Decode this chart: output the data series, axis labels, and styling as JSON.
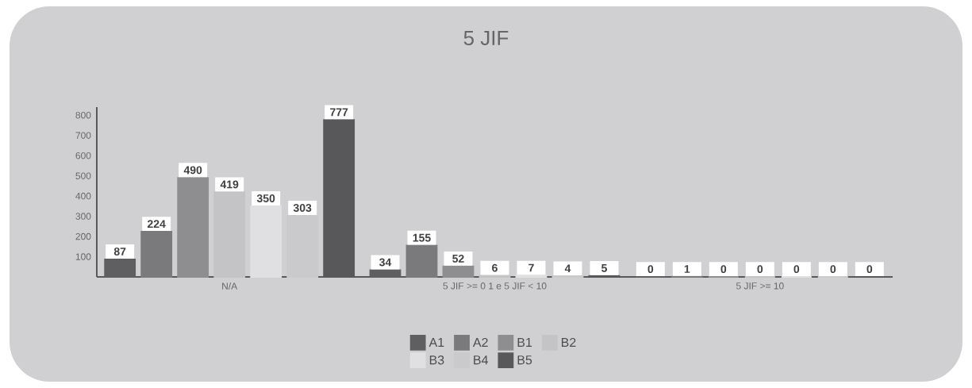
{
  "chart_data": {
    "type": "bar",
    "title": "5 JIF",
    "categories": [
      "N/A",
      "5 JIF >= 0 1 e 5 JIF < 10",
      "5 JIF >= 10"
    ],
    "series": [
      {
        "name": "A1",
        "color": "#5f5f61",
        "values": [
          87,
          34,
          0
        ]
      },
      {
        "name": "A2",
        "color": "#7a7a7c",
        "values": [
          224,
          155,
          1
        ]
      },
      {
        "name": "B1",
        "color": "#8e8e90",
        "values": [
          490,
          52,
          0
        ]
      },
      {
        "name": "B2",
        "color": "#c4c4c6",
        "values": [
          419,
          6,
          0
        ]
      },
      {
        "name": "B3",
        "color": "#e0e0e2",
        "values": [
          350,
          7,
          0
        ]
      },
      {
        "name": "B4",
        "color": "#cacacc",
        "values": [
          303,
          4,
          0
        ]
      },
      {
        "name": "B5",
        "color": "#58585a",
        "values": [
          777,
          5,
          0
        ]
      }
    ],
    "ylim": [
      0,
      840
    ],
    "yticks": [
      100,
      200,
      300,
      400,
      500,
      600,
      700,
      800
    ],
    "data_labels": true,
    "legend": "bottom",
    "grid": false
  }
}
